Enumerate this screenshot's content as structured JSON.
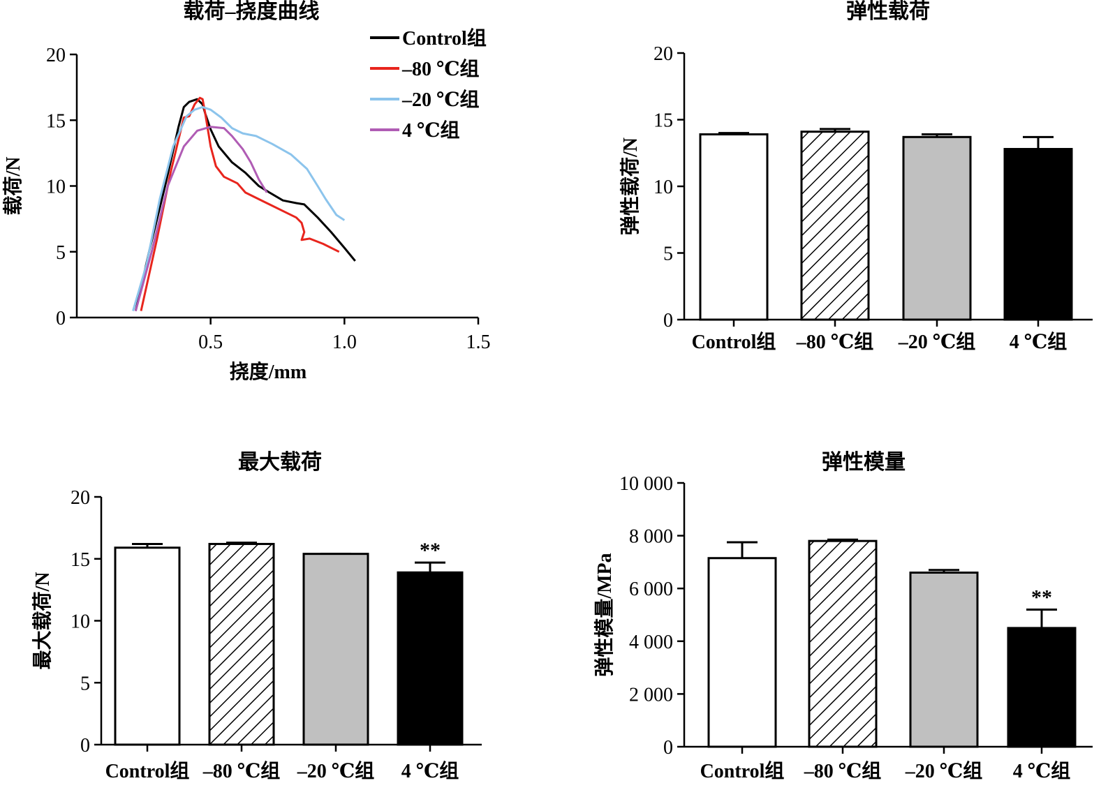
{
  "chart_data": [
    {
      "id": "load-deflection",
      "type": "line",
      "title": "载荷–挠度曲线",
      "xlabel": "挠度/mm",
      "ylabel": "载荷/N",
      "xlim": [
        0,
        1.5
      ],
      "ylim": [
        0,
        20
      ],
      "xticks": [
        0.5,
        1.0,
        1.5
      ],
      "xtick_labels": [
        "0.5",
        "1.0",
        "1.5"
      ],
      "yticks": [
        0,
        5,
        10,
        15,
        20
      ],
      "ytick_labels": [
        "0",
        "5",
        "10",
        "15",
        "20"
      ],
      "legend_position": "top-right",
      "series": [
        {
          "name": "Control组",
          "color": "#000000",
          "points": [
            [
              0.22,
              0.5
            ],
            [
              0.27,
              5
            ],
            [
              0.33,
              10
            ],
            [
              0.38,
              14.5
            ],
            [
              0.4,
              16.0
            ],
            [
              0.42,
              16.4
            ],
            [
              0.45,
              16.6
            ],
            [
              0.47,
              16.2
            ],
            [
              0.48,
              15.5
            ],
            [
              0.5,
              14.3
            ],
            [
              0.53,
              13.0
            ],
            [
              0.58,
              11.8
            ],
            [
              0.63,
              11.0
            ],
            [
              0.68,
              10.0
            ],
            [
              0.72,
              9.5
            ],
            [
              0.77,
              8.9
            ],
            [
              0.82,
              8.7
            ],
            [
              0.85,
              8.6
            ],
            [
              0.9,
              7.6
            ],
            [
              0.95,
              6.5
            ],
            [
              1.0,
              5.3
            ],
            [
              1.04,
              4.3
            ]
          ]
        },
        {
          "name": "–80 ℃组",
          "color": "#e8251d",
          "points": [
            [
              0.24,
              0.5
            ],
            [
              0.3,
              6
            ],
            [
              0.35,
              11
            ],
            [
              0.4,
              15.2
            ],
            [
              0.42,
              15.3
            ],
            [
              0.44,
              16.2
            ],
            [
              0.46,
              16.7
            ],
            [
              0.47,
              16.6
            ],
            [
              0.48,
              15.5
            ],
            [
              0.5,
              13.0
            ],
            [
              0.52,
              11.5
            ],
            [
              0.55,
              10.7
            ],
            [
              0.6,
              10.2
            ],
            [
              0.63,
              9.5
            ],
            [
              0.68,
              9.0
            ],
            [
              0.72,
              8.6
            ],
            [
              0.78,
              8.0
            ],
            [
              0.82,
              7.6
            ],
            [
              0.84,
              7.2
            ],
            [
              0.85,
              6.5
            ],
            [
              0.84,
              5.9
            ],
            [
              0.87,
              6.0
            ],
            [
              0.92,
              5.6
            ],
            [
              0.98,
              5.0
            ]
          ]
        },
        {
          "name": "–20 ℃组",
          "color": "#8cc4ec",
          "points": [
            [
              0.21,
              0.5
            ],
            [
              0.26,
              4
            ],
            [
              0.31,
              9
            ],
            [
              0.36,
              13
            ],
            [
              0.41,
              15.3
            ],
            [
              0.44,
              15.8
            ],
            [
              0.47,
              16.0
            ],
            [
              0.5,
              15.8
            ],
            [
              0.54,
              15.2
            ],
            [
              0.58,
              14.4
            ],
            [
              0.62,
              14.0
            ],
            [
              0.67,
              13.8
            ],
            [
              0.73,
              13.2
            ],
            [
              0.8,
              12.4
            ],
            [
              0.86,
              11.3
            ],
            [
              0.9,
              10.0
            ],
            [
              0.93,
              9.0
            ],
            [
              0.97,
              7.8
            ],
            [
              1.0,
              7.4
            ]
          ]
        },
        {
          "name": "4 ℃组",
          "color": "#b05cb4",
          "points": [
            [
              0.22,
              0.5
            ],
            [
              0.28,
              5
            ],
            [
              0.34,
              10
            ],
            [
              0.4,
              13.0
            ],
            [
              0.45,
              14.2
            ],
            [
              0.5,
              14.5
            ],
            [
              0.55,
              14.4
            ],
            [
              0.58,
              13.8
            ],
            [
              0.62,
              12.8
            ],
            [
              0.65,
              11.8
            ],
            [
              0.68,
              10.5
            ],
            [
              0.71,
              9.5
            ]
          ]
        }
      ]
    },
    {
      "id": "elastic-load",
      "type": "bar",
      "title": "弹性载荷",
      "ylabel": "弹性载荷/N",
      "xlabel": "",
      "ylim": [
        0,
        20
      ],
      "yticks": [
        0,
        5,
        10,
        15,
        20
      ],
      "ytick_labels": [
        "0",
        "5",
        "10",
        "15",
        "20"
      ],
      "categories": [
        "Control组",
        "–80 ℃组",
        "–20 ℃组",
        "4 ℃组"
      ],
      "values": [
        13.9,
        14.1,
        13.7,
        12.8
      ],
      "errors": [
        0.1,
        0.2,
        0.2,
        0.9
      ],
      "fills": [
        "white",
        "hatch",
        "gray",
        "black"
      ],
      "significance": [
        "",
        "",
        "",
        ""
      ]
    },
    {
      "id": "max-load",
      "type": "bar",
      "title": "最大载荷",
      "ylabel": "最大载荷/N",
      "xlabel": "",
      "ylim": [
        0,
        20
      ],
      "yticks": [
        0,
        5,
        10,
        15,
        20
      ],
      "ytick_labels": [
        "0",
        "5",
        "10",
        "15",
        "20"
      ],
      "categories": [
        "Control组",
        "–80 ℃组",
        "–20 ℃组",
        "4 ℃组"
      ],
      "values": [
        15.9,
        16.2,
        15.4,
        13.9
      ],
      "errors": [
        0.3,
        0.1,
        0.0,
        0.8
      ],
      "fills": [
        "white",
        "hatch",
        "gray",
        "black"
      ],
      "significance": [
        "",
        "",
        "",
        "**"
      ]
    },
    {
      "id": "elastic-modulus",
      "type": "bar",
      "title": "弹性模量",
      "ylabel": "弹性模量/MPa",
      "xlabel": "",
      "ylim": [
        0,
        10000
      ],
      "yticks": [
        0,
        2000,
        4000,
        6000,
        8000,
        10000
      ],
      "ytick_labels": [
        "0",
        "2 000",
        "4 000",
        "6 000",
        "8 000",
        "10 000"
      ],
      "categories": [
        "Control组",
        "–80 ℃组",
        "–20 ℃组",
        "4 ℃组"
      ],
      "values": [
        7150,
        7800,
        6600,
        4500
      ],
      "errors": [
        600,
        50,
        100,
        700
      ],
      "fills": [
        "white",
        "hatch",
        "gray",
        "black"
      ],
      "significance": [
        "",
        "",
        "",
        "**"
      ]
    }
  ],
  "colors": {
    "gray_fill": "#c0c0c0",
    "black_fill": "#000000",
    "axis": "#000000"
  }
}
